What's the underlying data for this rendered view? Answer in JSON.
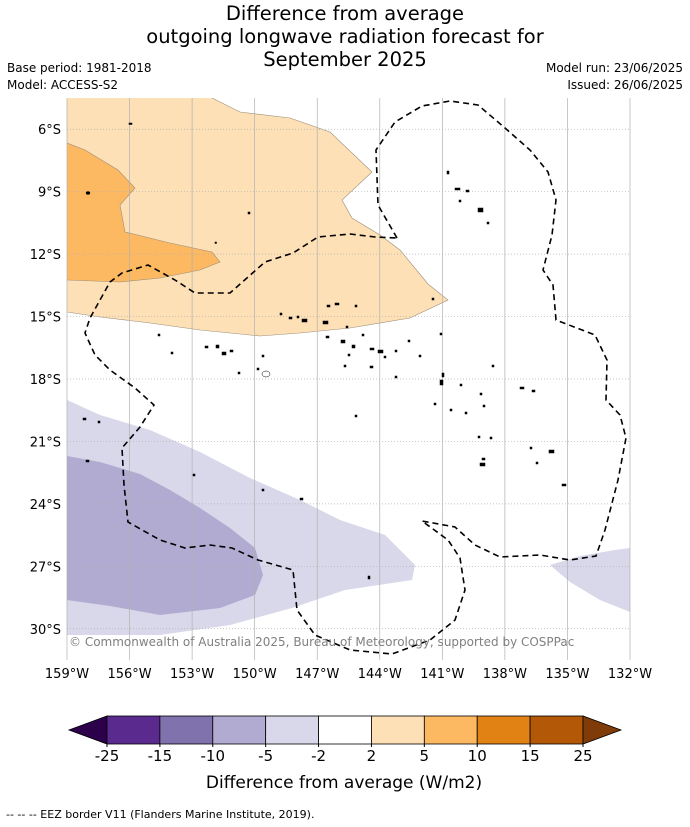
{
  "title": {
    "line1": "Difference from average",
    "line2": "outgoing longwave radiation forecast for",
    "line3": "September 2025"
  },
  "meta": {
    "base_period": "Base period: 1981-2018",
    "model": "Model: ACCESS-S2",
    "model_run": "Model run: 23/06/2025",
    "issued": "Issued: 26/06/2025"
  },
  "map": {
    "lon_range": [
      -159,
      -132
    ],
    "lat_range": [
      -31.5,
      -4.5
    ],
    "lon_ticks": [
      "159°W",
      "156°W",
      "153°W",
      "150°W",
      "147°W",
      "144°W",
      "141°W",
      "138°W",
      "135°W",
      "132°W"
    ],
    "lat_ticks": [
      "6°S",
      "9°S",
      "12°S",
      "15°S",
      "18°S",
      "21°S",
      "24°S",
      "27°S",
      "30°S"
    ],
    "copyright": "© Commonwealth of Australia 2025, Bureau of Meteorology, supported by COSPPac"
  },
  "colorbar": {
    "ticks": [
      "-25",
      "-15",
      "-10",
      "-5",
      "-2",
      "2",
      "5",
      "10",
      "15",
      "25"
    ],
    "colors": [
      "#5b2a8e",
      "#8072ac",
      "#b1aad1",
      "#d8d8ea",
      "#ffffff",
      "#fee0b6",
      "#fdb862",
      "#e08214",
      "#b35806"
    ],
    "under_color": "#2d004b",
    "over_color": "#7f3b08",
    "title": "Difference from average (W/m2)"
  },
  "footnote": "-- -- -- EEZ border V11 (Flanders Marine Institute, 2019)."
}
